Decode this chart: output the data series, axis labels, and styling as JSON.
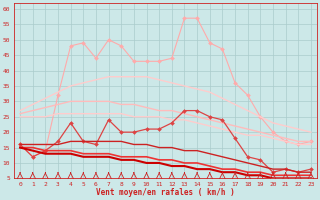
{
  "background_color": "#cce8e8",
  "grid_color": "#aacccc",
  "xlabel": "Vent moyen/en rafales ( km/h )",
  "xlim": [
    -0.5,
    23.5
  ],
  "ylim": [
    5,
    62
  ],
  "yticks": [
    5,
    10,
    15,
    20,
    25,
    30,
    35,
    40,
    45,
    50,
    55,
    60
  ],
  "xticks": [
    0,
    1,
    2,
    3,
    4,
    5,
    6,
    7,
    8,
    9,
    10,
    11,
    12,
    13,
    14,
    15,
    16,
    17,
    18,
    19,
    20,
    21,
    22,
    23
  ],
  "series": [
    {
      "name": "pink_rafales_high",
      "color": "#ffaaaa",
      "linewidth": 0.8,
      "marker": "D",
      "markersize": 2.0,
      "y": [
        16,
        12,
        14,
        32,
        48,
        49,
        44,
        50,
        48,
        43,
        43,
        43,
        44,
        57,
        57,
        49,
        47,
        36,
        32,
        25,
        20,
        17,
        16,
        17
      ]
    },
    {
      "name": "pink_trend_high",
      "color": "#ffcccc",
      "linewidth": 1.0,
      "marker": null,
      "markersize": 0,
      "y": [
        27,
        29,
        31,
        33,
        35,
        36,
        37,
        38,
        38,
        38,
        38,
        37,
        36,
        35,
        34,
        33,
        31,
        29,
        27,
        25,
        23,
        22,
        21,
        20
      ]
    },
    {
      "name": "pink_trend_mid",
      "color": "#ffbbbb",
      "linewidth": 1.0,
      "marker": null,
      "markersize": 0,
      "y": [
        26,
        27,
        28,
        29,
        30,
        30,
        30,
        30,
        29,
        29,
        28,
        27,
        27,
        26,
        25,
        24,
        23,
        22,
        21,
        20,
        19,
        18,
        17,
        17
      ]
    },
    {
      "name": "pink_trend_low",
      "color": "#ffcccc",
      "linewidth": 1.0,
      "marker": null,
      "markersize": 0,
      "y": [
        25,
        25,
        25,
        26,
        26,
        26,
        26,
        26,
        26,
        25,
        25,
        25,
        24,
        24,
        23,
        22,
        21,
        20,
        19,
        19,
        18,
        17,
        16,
        16
      ]
    },
    {
      "name": "red_mean",
      "color": "#dd4444",
      "linewidth": 0.9,
      "marker": "D",
      "markersize": 2.0,
      "y": [
        16,
        12,
        14,
        17,
        23,
        17,
        16,
        24,
        20,
        20,
        21,
        21,
        23,
        27,
        27,
        25,
        24,
        18,
        12,
        11,
        7,
        8,
        7,
        8
      ]
    },
    {
      "name": "red_trend_high",
      "color": "#cc2222",
      "linewidth": 1.0,
      "marker": null,
      "markersize": 0,
      "y": [
        16,
        16,
        16,
        16,
        17,
        17,
        17,
        17,
        17,
        16,
        16,
        15,
        15,
        14,
        14,
        13,
        12,
        11,
        10,
        9,
        8,
        8,
        7,
        7
      ]
    },
    {
      "name": "red_trend_low1",
      "color": "#ee3333",
      "linewidth": 1.2,
      "marker": null,
      "markersize": 0,
      "y": [
        15,
        15,
        14,
        14,
        14,
        13,
        13,
        13,
        12,
        12,
        12,
        11,
        11,
        10,
        10,
        9,
        8,
        8,
        7,
        7,
        6,
        6,
        6,
        6
      ]
    },
    {
      "name": "red_trend_low2",
      "color": "#cc0000",
      "linewidth": 1.5,
      "marker": null,
      "markersize": 0,
      "y": [
        15,
        14,
        13,
        13,
        13,
        12,
        12,
        12,
        11,
        11,
        10,
        10,
        9,
        9,
        8,
        8,
        7,
        7,
        6,
        6,
        5,
        5,
        5,
        5
      ]
    }
  ],
  "arrow_angles": [
    45,
    90,
    90,
    45,
    45,
    90,
    45,
    90,
    315,
    90,
    315,
    90,
    315,
    90,
    315,
    90,
    45,
    45,
    90,
    90,
    45,
    90,
    45,
    90
  ]
}
